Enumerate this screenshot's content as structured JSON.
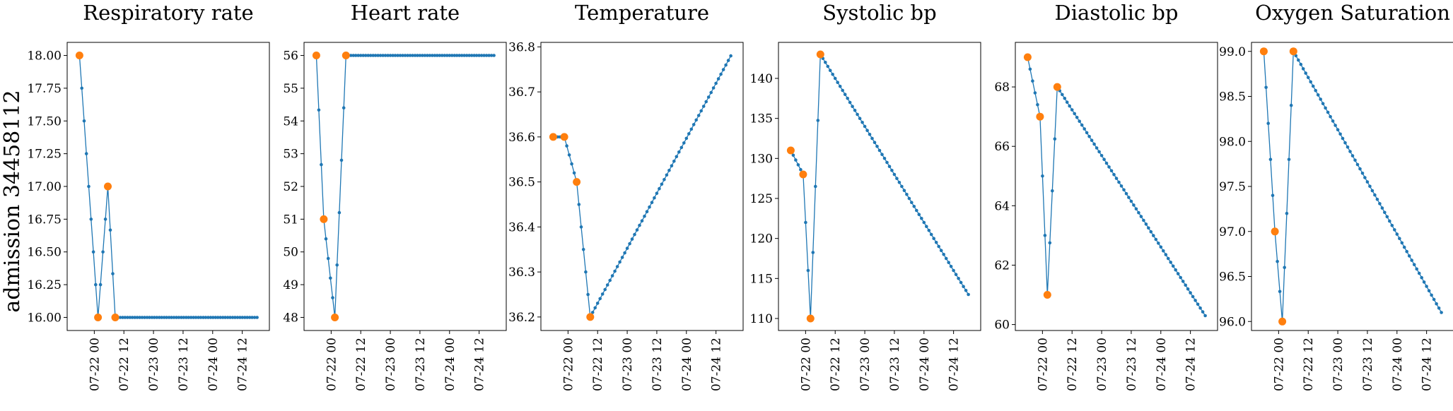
{
  "figure": {
    "row_label": "admission 34458112",
    "x_tick_labels": [
      "07-22 00",
      "07-22 12",
      "07-23 00",
      "07-23 12",
      "07-24 00",
      "07-24 12"
    ],
    "colors": {
      "interpolated": "#1f77b4",
      "observed": "#ff7f0e"
    }
  },
  "chart_data": [
    {
      "type": "line",
      "title": "Respiratory rate",
      "xlabel": "",
      "ylabel": "",
      "ylim": [
        15.9,
        18.1
      ],
      "y_ticks": [
        "16.00",
        "16.25",
        "16.50",
        "16.75",
        "17.00",
        "17.25",
        "17.50",
        "17.75",
        "18.00"
      ],
      "observed": [
        {
          "x": "07-21 18:00",
          "y": 18
        },
        {
          "x": "07-22 01:30",
          "y": 16
        },
        {
          "x": "07-22 05:30",
          "y": 17
        },
        {
          "x": "07-22 08:30",
          "y": 16
        }
      ],
      "interpolated_until": {
        "x": "07-24 18:00",
        "y": 16
      }
    },
    {
      "type": "line",
      "title": "Heart rate",
      "xlabel": "",
      "ylabel": "",
      "ylim": [
        47.6,
        56.4
      ],
      "y_ticks": [
        "48",
        "49",
        "50",
        "51",
        "52",
        "53",
        "54",
        "55",
        "56"
      ],
      "observed": [
        {
          "x": "07-21 18:00",
          "y": 56
        },
        {
          "x": "07-21 21:00",
          "y": 51
        },
        {
          "x": "07-22 01:30",
          "y": 48
        },
        {
          "x": "07-22 06:00",
          "y": 56
        }
      ],
      "interpolated_until": {
        "x": "07-24 18:00",
        "y": 56
      }
    },
    {
      "type": "line",
      "title": "Temperature",
      "xlabel": "",
      "ylabel": "",
      "ylim": [
        36.17,
        36.81
      ],
      "y_ticks": [
        "36.2",
        "36.3",
        "36.4",
        "36.5",
        "36.6",
        "36.7",
        "36.8"
      ],
      "observed": [
        {
          "x": "07-21 18:00",
          "y": 36.6
        },
        {
          "x": "07-21 22:30",
          "y": 36.6
        },
        {
          "x": "07-22 03:30",
          "y": 36.5
        },
        {
          "x": "07-22 09:00",
          "y": 36.2
        }
      ],
      "interpolated_until": {
        "x": "07-24 18:00",
        "y": 36.78
      }
    },
    {
      "type": "line",
      "title": "Systolic bp",
      "xlabel": "",
      "ylabel": "",
      "ylim": [
        108.5,
        144.5
      ],
      "y_ticks": [
        "110",
        "115",
        "120",
        "125",
        "130",
        "135",
        "140"
      ],
      "observed": [
        {
          "x": "07-21 18:00",
          "y": 131
        },
        {
          "x": "07-21 23:00",
          "y": 128
        },
        {
          "x": "07-22 02:00",
          "y": 110
        },
        {
          "x": "07-22 06:00",
          "y": 143
        }
      ],
      "interpolated_until": {
        "x": "07-24 18:00",
        "y": 113
      }
    },
    {
      "type": "line",
      "title": "Diastolic bp",
      "xlabel": "",
      "ylabel": "",
      "ylim": [
        59.8,
        69.5
      ],
      "y_ticks": [
        "60",
        "62",
        "64",
        "66",
        "68"
      ],
      "observed": [
        {
          "x": "07-21 18:00",
          "y": 69
        },
        {
          "x": "07-21 23:00",
          "y": 67
        },
        {
          "x": "07-22 02:00",
          "y": 61
        },
        {
          "x": "07-22 06:00",
          "y": 68
        }
      ],
      "interpolated_until": {
        "x": "07-24 18:00",
        "y": 60.3
      }
    },
    {
      "type": "line",
      "title": "Oxygen Saturation",
      "xlabel": "",
      "ylabel": "",
      "ylim": [
        95.9,
        99.1
      ],
      "y_ticks": [
        "96.0",
        "96.5",
        "97.0",
        "97.5",
        "98.0",
        "98.5",
        "99.0"
      ],
      "observed": [
        {
          "x": "07-21 18:00",
          "y": 99
        },
        {
          "x": "07-21 22:30",
          "y": 97
        },
        {
          "x": "07-22 01:30",
          "y": 96
        },
        {
          "x": "07-22 06:00",
          "y": 99
        }
      ],
      "interpolated_until": {
        "x": "07-24 18:00",
        "y": 96.1
      }
    }
  ]
}
